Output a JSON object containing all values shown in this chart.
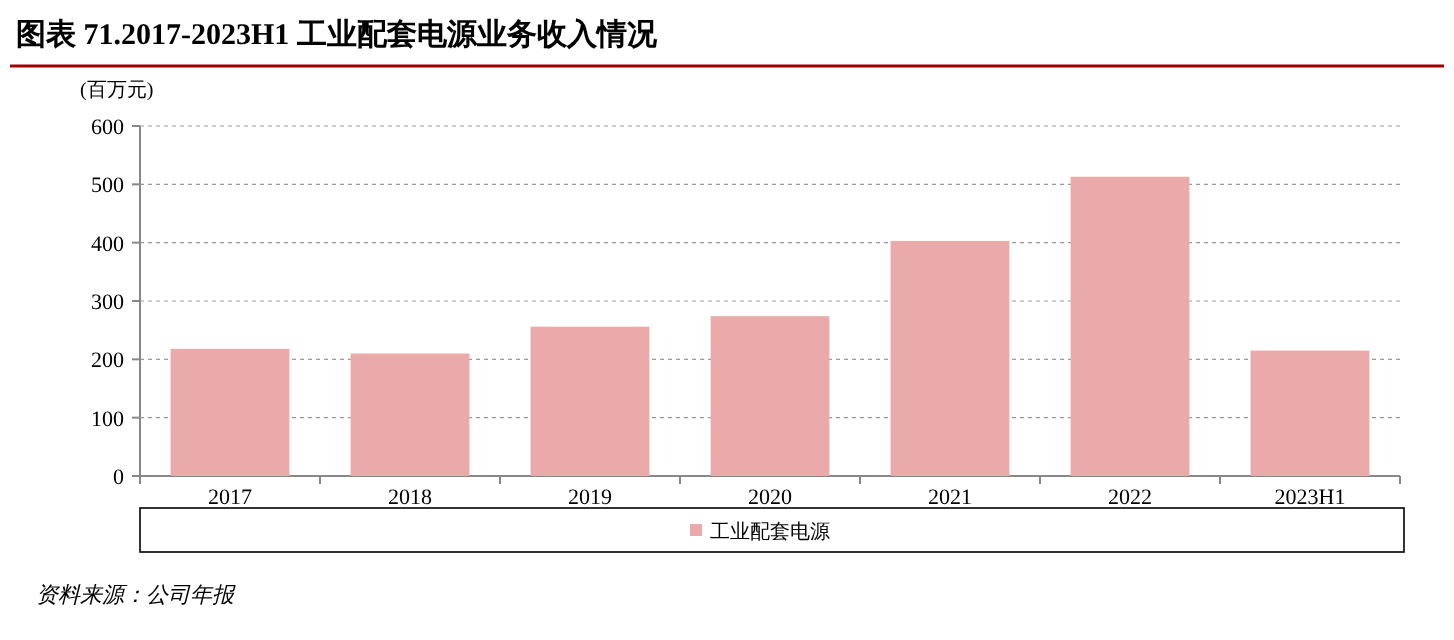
{
  "chart_data": {
    "type": "bar",
    "title": "图表 71.2017-2023H1 工业配套电源业务收入情况",
    "ylabel": "(百万元)",
    "categories": [
      "2017",
      "2018",
      "2019",
      "2020",
      "2021",
      "2022",
      "2023H1"
    ],
    "series": [
      {
        "name": "工业配套电源",
        "color": "#eaaaaa",
        "values": [
          218,
          210,
          256,
          274,
          403,
          513,
          215
        ]
      }
    ],
    "ylim": [
      0,
      600
    ],
    "yticks": [
      0,
      100,
      200,
      300,
      400,
      500,
      600
    ],
    "grid": "y",
    "legend": "bottom",
    "annotations": [
      "资料来源：公司年报"
    ]
  }
}
